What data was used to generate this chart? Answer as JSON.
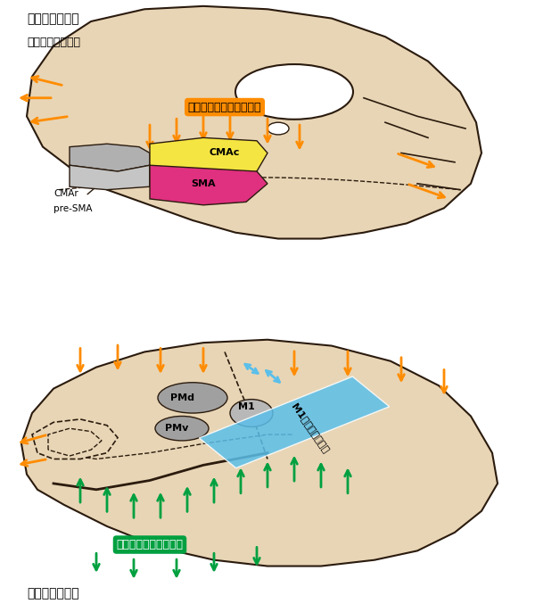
{
  "bg_color": "#FFFFFF",
  "brain_skin": "#E8D5B5",
  "brain_outline": "#2B1B0E",
  "orange_color": "#FF8C00",
  "green_color": "#00A040",
  "blue_color": "#5BBFEA",
  "gray_color": "#A0A0A0",
  "yellow_color": "#F5E542",
  "pink_color": "#E03080",
  "orange_label_bg": "#FF8C00",
  "green_label_bg": "#00A040",
  "blue_label_bg": "#5BBFEA",
  "top_label": "大脳皮質内側面",
  "top_sublabel": "（上下逆に示す）",
  "bottom_label": "大脳皮質外側面",
  "cingulate_label": "帯状皮質グラデーション",
  "island_label": "島皮質グラデーション",
  "m1_label": "M1グラデーション",
  "CMAc": "CMAc",
  "SMA": "SMA",
  "CMAr": "CMAr",
  "pre_SMA": "pre-SMA",
  "PMd": "PMd",
  "PMv": "PMv",
  "M1": "M1"
}
